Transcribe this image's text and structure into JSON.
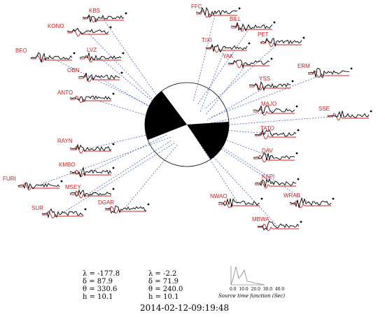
{
  "stations": [
    {
      "name": "KBS"
    },
    {
      "name": "KONO"
    },
    {
      "name": "BFO"
    },
    {
      "name": "LVZ"
    },
    {
      "name": "OBN"
    },
    {
      "name": "ANTO"
    },
    {
      "name": "RAYN"
    },
    {
      "name": "KMBO"
    },
    {
      "name": "FURI"
    },
    {
      "name": "MSEY"
    },
    {
      "name": "SUR"
    },
    {
      "name": "DGAR"
    },
    {
      "name": "FFC"
    },
    {
      "name": "BILL"
    },
    {
      "name": "PET"
    },
    {
      "name": "TIXI"
    },
    {
      "name": "YAK"
    },
    {
      "name": "ERM"
    },
    {
      "name": "YSS"
    },
    {
      "name": "MAJO"
    },
    {
      "name": "SSE"
    },
    {
      "name": "TATO"
    },
    {
      "name": "DAV"
    },
    {
      "name": "KAPI"
    },
    {
      "name": "NWAO"
    },
    {
      "name": "WRAB"
    },
    {
      "name": "MBWA"
    }
  ],
  "solution": {
    "plane1": {
      "lambda": "λ = -177.8",
      "delta": "δ = 87.9",
      "theta": "θ = 330.6",
      "h": "h = 10.1"
    },
    "plane2": {
      "lambda": "λ = -2.2",
      "delta": "δ = 71.9",
      "theta": "θ = 240.0",
      "h": "h = 10.1"
    }
  },
  "stf": {
    "caption": "Source time function (Sec)",
    "ticks": "0.0  10.0  20.0  30.0  40.0"
  },
  "event_time": "2014-02-12-09:19:48",
  "colors": {
    "label": "#cc2222",
    "synthetic": "#cc2222",
    "observed": "#000000",
    "ray": "#2b4fb5"
  }
}
